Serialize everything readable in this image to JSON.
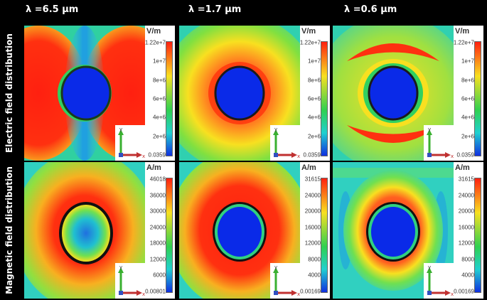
{
  "columns": [
    {
      "wavelength": "λ =6.5 µm"
    },
    {
      "wavelength": "λ =1.7 µm"
    },
    {
      "wavelength": "λ =0.6 µm"
    }
  ],
  "rows": [
    {
      "label": "Electric field distribution",
      "unit": "V/m"
    },
    {
      "label": "Magnetic field distribution",
      "unit": "A/m"
    }
  ],
  "colorbars": {
    "r0c0": [
      "1.22e+7",
      "1e+7",
      "8e+6",
      "6e+6",
      "4e+6",
      "2e+6",
      "0.0359"
    ],
    "r0c1": [
      "1.22e+7",
      "1e+7",
      "8e+6",
      "6e+6",
      "4e+6",
      "2e+6",
      "0.0359"
    ],
    "r0c2": [
      "1.22e+7",
      "1e+7",
      "8e+6",
      "6e+6",
      "4e+6",
      "2e+6",
      "0.0359"
    ],
    "r1c0": [
      "46018",
      "36000",
      "30000",
      "24000",
      "18000",
      "12000",
      "6000",
      "0.00801"
    ],
    "r1c1": [
      "31615",
      "24000",
      "20000",
      "16000",
      "12000",
      "8000",
      "4000",
      "0.00169"
    ],
    "r1c2": [
      "31615",
      "24000",
      "20000",
      "16000",
      "12000",
      "8000",
      "4000",
      "0.00169"
    ]
  },
  "axis": {
    "x": "x",
    "y": "y"
  },
  "colors": {
    "red": "#ff2010",
    "yellow": "#f8e020",
    "green": "#30d050",
    "cyan": "#20d0d0",
    "blue": "#1030e0",
    "particle": "#0828e8",
    "ring": "#1a1a1a"
  }
}
